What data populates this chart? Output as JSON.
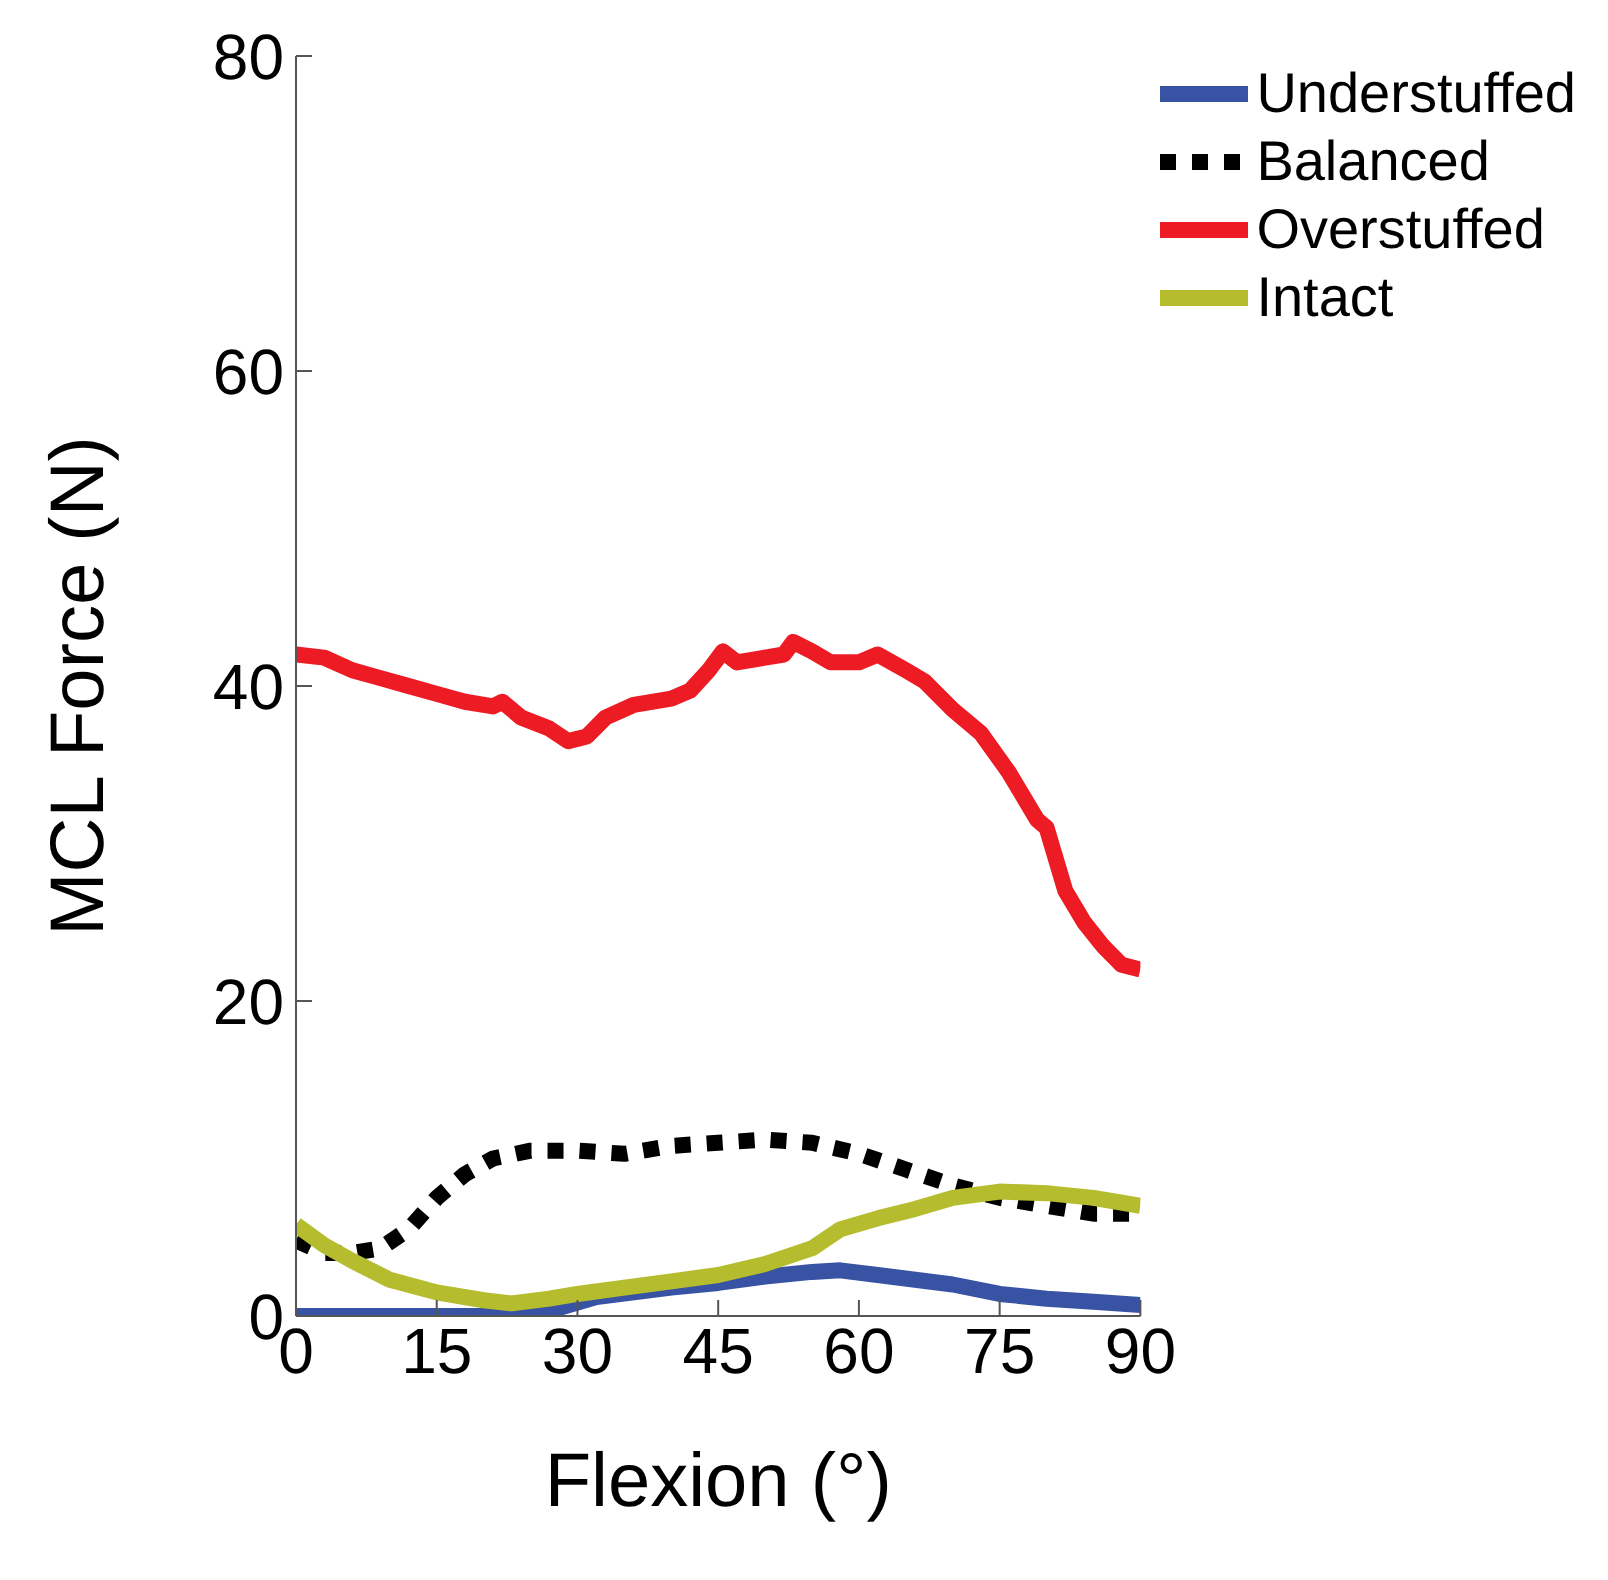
{
  "chart_data": {
    "type": "line",
    "xlabel": "Flexion (°)",
    "ylabel": "MCL Force (N)",
    "xlim": [
      0,
      90
    ],
    "xticks": [
      0,
      15,
      30,
      45,
      60,
      75,
      90
    ],
    "ylim": [
      0,
      80
    ],
    "yticks": [
      0,
      20,
      40,
      60,
      80
    ],
    "grid": false,
    "legend": "top right",
    "marker": "none",
    "series": [
      {
        "name": "Understuffed",
        "color": "#3953a4",
        "x": [
          0,
          10,
          20,
          25,
          28,
          32,
          40,
          45,
          50,
          55,
          58,
          62,
          66,
          70,
          75,
          80,
          85,
          90
        ],
        "values": [
          0,
          0,
          0,
          0,
          0.5,
          1.2,
          1.8,
          2.1,
          2.5,
          2.8,
          2.9,
          2.6,
          2.3,
          2,
          1.4,
          1.1,
          0.9,
          0.7
        ]
      },
      {
        "name": "Balanced",
        "color": "#000000",
        "line_style": "dotted",
        "x": [
          0,
          3,
          6,
          9,
          12,
          15,
          18,
          21,
          25,
          30,
          35,
          40,
          45,
          50,
          55,
          60,
          65,
          70,
          75,
          80,
          85,
          90
        ],
        "values": [
          4.8,
          4,
          4,
          4.3,
          5.5,
          7.5,
          9,
          10,
          10.5,
          10.5,
          10.3,
          10.8,
          11,
          11.2,
          11,
          10.3,
          9.3,
          8.3,
          7.5,
          7,
          6.5,
          6.5
        ]
      },
      {
        "name": "Overstuffed",
        "color": "#ed1c24",
        "x": [
          0,
          3,
          6,
          9,
          12,
          15,
          18,
          21,
          22,
          24,
          27,
          29,
          31,
          33,
          36,
          40,
          42,
          44,
          45.5,
          47,
          50,
          52,
          53,
          55,
          57,
          60,
          62,
          65,
          67,
          70,
          73,
          76,
          79,
          80,
          82,
          84,
          86,
          88,
          90
        ],
        "values": [
          42,
          41.8,
          41,
          40.5,
          40,
          39.5,
          39,
          38.7,
          39,
          38,
          37.3,
          36.5,
          36.8,
          38,
          38.8,
          39.2,
          39.7,
          41,
          42.2,
          41.5,
          41.8,
          42,
          42.8,
          42.2,
          41.5,
          41.5,
          42,
          41,
          40.3,
          38.5,
          37,
          34.5,
          31.5,
          31,
          27,
          25,
          23.5,
          22.3,
          22
        ]
      },
      {
        "name": "Intact",
        "color": "#b5bd2e",
        "x": [
          0,
          3,
          6,
          10,
          15,
          20,
          23,
          27,
          30,
          35,
          40,
          45,
          50,
          55,
          58,
          62,
          66,
          70,
          75,
          80,
          85,
          90
        ],
        "values": [
          5.8,
          4.5,
          3.5,
          2.3,
          1.5,
          1,
          0.8,
          1.1,
          1.4,
          1.8,
          2.2,
          2.6,
          3.3,
          4.3,
          5.5,
          6.2,
          6.8,
          7.5,
          7.9,
          7.8,
          7.5,
          7
        ]
      }
    ]
  }
}
